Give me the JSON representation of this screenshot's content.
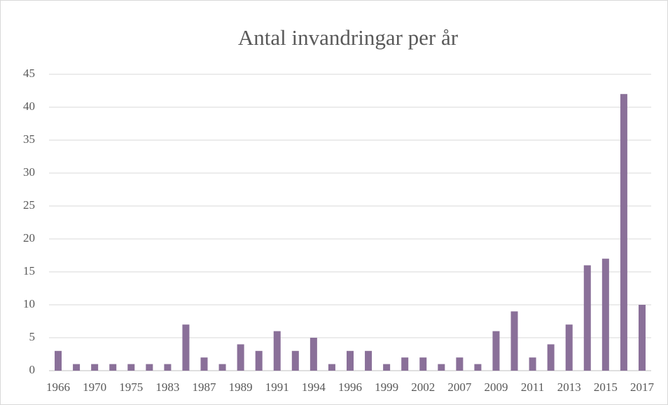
{
  "chart_data": {
    "type": "bar",
    "title": "Antal invandringar per år",
    "categories": [
      "1966",
      null,
      "1970",
      null,
      "1975",
      null,
      "1983",
      null,
      "1987",
      null,
      "1989",
      null,
      "1991",
      null,
      "1994",
      null,
      "1996",
      null,
      "1999",
      null,
      "2002",
      null,
      "2007",
      null,
      "2009",
      null,
      "2011",
      null,
      "2013",
      null,
      "2015",
      null,
      "2017"
    ],
    "values": [
      3,
      1,
      1,
      1,
      1,
      1,
      1,
      7,
      2,
      1,
      4,
      3,
      6,
      3,
      5,
      1,
      3,
      3,
      1,
      2,
      2,
      1,
      2,
      1,
      6,
      9,
      2,
      4,
      7,
      16,
      17,
      42,
      10
    ],
    "color": "#8a7099",
    "ylim": [
      0,
      45
    ],
    "yticks": [
      0,
      5,
      10,
      15,
      20,
      25,
      30,
      35,
      40,
      45
    ],
    "grid": true
  }
}
